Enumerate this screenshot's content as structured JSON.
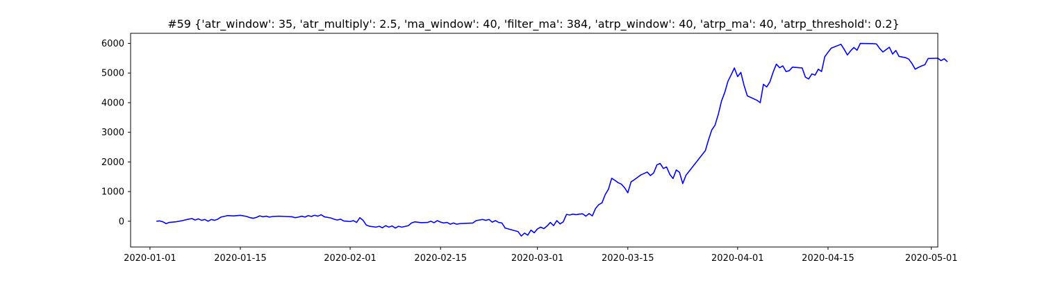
{
  "chart_data": {
    "type": "line",
    "title": "#59 {'atr_window': 35, 'atr_multiply': 2.5, 'ma_window': 40, 'filter_ma': 384, 'atrp_window': 40, 'atrp_ma': 40, 'atrp_threshold': 0.2}",
    "xlabel": "",
    "ylabel": "",
    "x_axis_type": "date",
    "xlim": [
      "2019-12-29",
      "2020-05-02"
    ],
    "ylim": [
      -870,
      6340
    ],
    "x_ticks": [
      "2020-01-01",
      "2020-01-15",
      "2020-02-01",
      "2020-02-15",
      "2020-03-01",
      "2020-03-15",
      "2020-04-01",
      "2020-04-15",
      "2020-05-01"
    ],
    "y_ticks": [
      0,
      1000,
      2000,
      3000,
      4000,
      5000,
      6000
    ],
    "grid": false,
    "line_color": "#0000ff",
    "series": [
      {
        "points": [
          [
            "2020-01-02",
            0
          ],
          [
            "2020-01-02T12:00",
            10
          ],
          [
            "2020-01-03",
            -20
          ],
          [
            "2020-01-03T12:00",
            -80
          ],
          [
            "2020-01-04",
            -40
          ],
          [
            "2020-01-05",
            -20
          ],
          [
            "2020-01-06",
            20
          ],
          [
            "2020-01-07",
            70
          ],
          [
            "2020-01-07T12:00",
            90
          ],
          [
            "2020-01-08",
            40
          ],
          [
            "2020-01-08T12:00",
            80
          ],
          [
            "2020-01-09",
            30
          ],
          [
            "2020-01-09T12:00",
            60
          ],
          [
            "2020-01-10",
            0
          ],
          [
            "2020-01-10T12:00",
            60
          ],
          [
            "2020-01-11",
            30
          ],
          [
            "2020-01-11T12:00",
            70
          ],
          [
            "2020-01-12",
            140
          ],
          [
            "2020-01-13",
            190
          ],
          [
            "2020-01-14",
            180
          ],
          [
            "2020-01-15",
            200
          ],
          [
            "2020-01-16",
            160
          ],
          [
            "2020-01-16T12:00",
            120
          ],
          [
            "2020-01-17",
            100
          ],
          [
            "2020-01-17T12:00",
            130
          ],
          [
            "2020-01-18",
            180
          ],
          [
            "2020-01-18T12:00",
            150
          ],
          [
            "2020-01-19",
            170
          ],
          [
            "2020-01-19T12:00",
            140
          ],
          [
            "2020-01-20",
            160
          ],
          [
            "2020-01-21",
            170
          ],
          [
            "2020-01-22",
            160
          ],
          [
            "2020-01-23",
            150
          ],
          [
            "2020-01-23T12:00",
            120
          ],
          [
            "2020-01-24",
            140
          ],
          [
            "2020-01-24T12:00",
            170
          ],
          [
            "2020-01-25",
            140
          ],
          [
            "2020-01-25T12:00",
            190
          ],
          [
            "2020-01-26",
            160
          ],
          [
            "2020-01-26T12:00",
            200
          ],
          [
            "2020-01-27",
            170
          ],
          [
            "2020-01-27T12:00",
            220
          ],
          [
            "2020-01-28",
            150
          ],
          [
            "2020-01-29",
            110
          ],
          [
            "2020-01-29T12:00",
            70
          ],
          [
            "2020-01-30",
            40
          ],
          [
            "2020-01-30T12:00",
            70
          ],
          [
            "2020-01-31",
            10
          ],
          [
            "2020-02-01",
            -10
          ],
          [
            "2020-02-01T12:00",
            20
          ],
          [
            "2020-02-02",
            -40
          ],
          [
            "2020-02-02T12:00",
            120
          ],
          [
            "2020-02-03",
            30
          ],
          [
            "2020-02-03T12:00",
            -130
          ],
          [
            "2020-02-04",
            -170
          ],
          [
            "2020-02-05",
            -200
          ],
          [
            "2020-02-05T12:00",
            -170
          ],
          [
            "2020-02-06",
            -220
          ],
          [
            "2020-02-06T12:00",
            -150
          ],
          [
            "2020-02-07",
            -200
          ],
          [
            "2020-02-07T12:00",
            -160
          ],
          [
            "2020-02-08",
            -230
          ],
          [
            "2020-02-08T12:00",
            -170
          ],
          [
            "2020-02-09",
            -200
          ],
          [
            "2020-02-10",
            -150
          ],
          [
            "2020-02-10T12:00",
            -60
          ],
          [
            "2020-02-11",
            -20
          ],
          [
            "2020-02-12",
            -50
          ],
          [
            "2020-02-13",
            -40
          ],
          [
            "2020-02-13T12:00",
            0
          ],
          [
            "2020-02-14",
            -50
          ],
          [
            "2020-02-14T12:00",
            20
          ],
          [
            "2020-02-15",
            -30
          ],
          [
            "2020-02-15T12:00",
            -60
          ],
          [
            "2020-02-16",
            -40
          ],
          [
            "2020-02-16T12:00",
            -100
          ],
          [
            "2020-02-17",
            -60
          ],
          [
            "2020-02-17T12:00",
            -100
          ],
          [
            "2020-02-18",
            -80
          ],
          [
            "2020-02-19",
            -70
          ],
          [
            "2020-02-20",
            -60
          ],
          [
            "2020-02-20T12:00",
            20
          ],
          [
            "2020-02-21",
            40
          ],
          [
            "2020-02-21T12:00",
            60
          ],
          [
            "2020-02-22",
            30
          ],
          [
            "2020-02-22T12:00",
            60
          ],
          [
            "2020-02-23",
            -30
          ],
          [
            "2020-02-23T12:00",
            20
          ],
          [
            "2020-02-24",
            -40
          ],
          [
            "2020-02-24T12:00",
            -60
          ],
          [
            "2020-02-25",
            -230
          ],
          [
            "2020-02-26",
            -290
          ],
          [
            "2020-02-26T12:00",
            -320
          ],
          [
            "2020-02-27",
            -350
          ],
          [
            "2020-02-27T12:00",
            -500
          ],
          [
            "2020-02-28",
            -400
          ],
          [
            "2020-02-28T12:00",
            -470
          ],
          [
            "2020-02-29",
            -300
          ],
          [
            "2020-02-29T12:00",
            -390
          ],
          [
            "2020-03-01",
            -260
          ],
          [
            "2020-03-01T12:00",
            -200
          ],
          [
            "2020-03-02",
            -250
          ],
          [
            "2020-03-02T12:00",
            -160
          ],
          [
            "2020-03-03",
            -40
          ],
          [
            "2020-03-03T12:00",
            -150
          ],
          [
            "2020-03-04",
            20
          ],
          [
            "2020-03-04T12:00",
            -90
          ],
          [
            "2020-03-05",
            -20
          ],
          [
            "2020-03-05T12:00",
            230
          ],
          [
            "2020-03-06",
            210
          ],
          [
            "2020-03-06T12:00",
            240
          ],
          [
            "2020-03-07",
            220
          ],
          [
            "2020-03-07T12:00",
            240
          ],
          [
            "2020-03-08",
            250
          ],
          [
            "2020-03-08T12:00",
            170
          ],
          [
            "2020-03-09",
            260
          ],
          [
            "2020-03-09T12:00",
            180
          ],
          [
            "2020-03-10",
            430
          ],
          [
            "2020-03-10T12:00",
            560
          ],
          [
            "2020-03-11",
            620
          ],
          [
            "2020-03-11T12:00",
            900
          ],
          [
            "2020-03-12",
            1080
          ],
          [
            "2020-03-12T12:00",
            1450
          ],
          [
            "2020-03-13",
            1380
          ],
          [
            "2020-03-13T12:00",
            1300
          ],
          [
            "2020-03-14",
            1250
          ],
          [
            "2020-03-14T12:00",
            1130
          ],
          [
            "2020-03-15",
            960
          ],
          [
            "2020-03-15T12:00",
            1330
          ],
          [
            "2020-03-16",
            1400
          ],
          [
            "2020-03-17",
            1560
          ],
          [
            "2020-03-18",
            1660
          ],
          [
            "2020-03-18T12:00",
            1540
          ],
          [
            "2020-03-19",
            1630
          ],
          [
            "2020-03-19T12:00",
            1900
          ],
          [
            "2020-03-20",
            1950
          ],
          [
            "2020-03-20T12:00",
            1780
          ],
          [
            "2020-03-21",
            1830
          ],
          [
            "2020-03-21T12:00",
            1580
          ],
          [
            "2020-03-22",
            1440
          ],
          [
            "2020-03-22T12:00",
            1730
          ],
          [
            "2020-03-23",
            1650
          ],
          [
            "2020-03-23T12:00",
            1270
          ],
          [
            "2020-03-24",
            1550
          ],
          [
            "2020-03-27",
            2380
          ],
          [
            "2020-03-27T12:00",
            2750
          ],
          [
            "2020-03-28",
            3080
          ],
          [
            "2020-03-28T12:00",
            3240
          ],
          [
            "2020-03-29",
            3600
          ],
          [
            "2020-03-29T12:00",
            4050
          ],
          [
            "2020-03-30",
            4340
          ],
          [
            "2020-03-30T12:00",
            4720
          ],
          [
            "2020-03-31",
            4940
          ],
          [
            "2020-03-31T12:00",
            5170
          ],
          [
            "2020-04-01",
            4880
          ],
          [
            "2020-04-01T12:00",
            5020
          ],
          [
            "2020-04-02",
            4580
          ],
          [
            "2020-04-02T12:00",
            4230
          ],
          [
            "2020-04-04",
            4080
          ],
          [
            "2020-04-04T12:00",
            4000
          ],
          [
            "2020-04-05",
            4620
          ],
          [
            "2020-04-05T12:00",
            4530
          ],
          [
            "2020-04-06",
            4700
          ],
          [
            "2020-04-06T12:00",
            5030
          ],
          [
            "2020-04-07",
            5300
          ],
          [
            "2020-04-07T12:00",
            5180
          ],
          [
            "2020-04-08",
            5240
          ],
          [
            "2020-04-08T12:00",
            5050
          ],
          [
            "2020-04-09",
            5080
          ],
          [
            "2020-04-09T12:00",
            5200
          ],
          [
            "2020-04-11",
            5170
          ],
          [
            "2020-04-11T12:00",
            4860
          ],
          [
            "2020-04-12",
            4800
          ],
          [
            "2020-04-12T12:00",
            4970
          ],
          [
            "2020-04-13",
            4930
          ],
          [
            "2020-04-13T12:00",
            5130
          ],
          [
            "2020-04-14",
            5050
          ],
          [
            "2020-04-14T12:00",
            5550
          ],
          [
            "2020-04-15",
            5700
          ],
          [
            "2020-04-15T12:00",
            5840
          ],
          [
            "2020-04-17",
            5970
          ],
          [
            "2020-04-17T12:00",
            5800
          ],
          [
            "2020-04-18",
            5610
          ],
          [
            "2020-04-18T12:00",
            5750
          ],
          [
            "2020-04-19",
            5860
          ],
          [
            "2020-04-19T12:00",
            5770
          ],
          [
            "2020-04-20",
            6000
          ],
          [
            "2020-04-22",
            5990
          ],
          [
            "2020-04-22T12:00",
            5980
          ],
          [
            "2020-04-23",
            5830
          ],
          [
            "2020-04-23T12:00",
            5710
          ],
          [
            "2020-04-24",
            5790
          ],
          [
            "2020-04-24T12:00",
            5870
          ],
          [
            "2020-04-25",
            5640
          ],
          [
            "2020-04-25T12:00",
            5760
          ],
          [
            "2020-04-26",
            5560
          ],
          [
            "2020-04-27",
            5520
          ],
          [
            "2020-04-27T12:00",
            5470
          ],
          [
            "2020-04-28",
            5320
          ],
          [
            "2020-04-28T12:00",
            5130
          ],
          [
            "2020-04-29",
            5190
          ],
          [
            "2020-04-29T12:00",
            5240
          ],
          [
            "2020-04-30",
            5280
          ],
          [
            "2020-04-30T12:00",
            5490
          ],
          [
            "2020-05-02",
            5500
          ],
          [
            "2020-05-02T12:00",
            5420
          ],
          [
            "2020-05-03",
            5480
          ],
          [
            "2020-05-03T12:00",
            5380
          ]
        ]
      }
    ]
  }
}
